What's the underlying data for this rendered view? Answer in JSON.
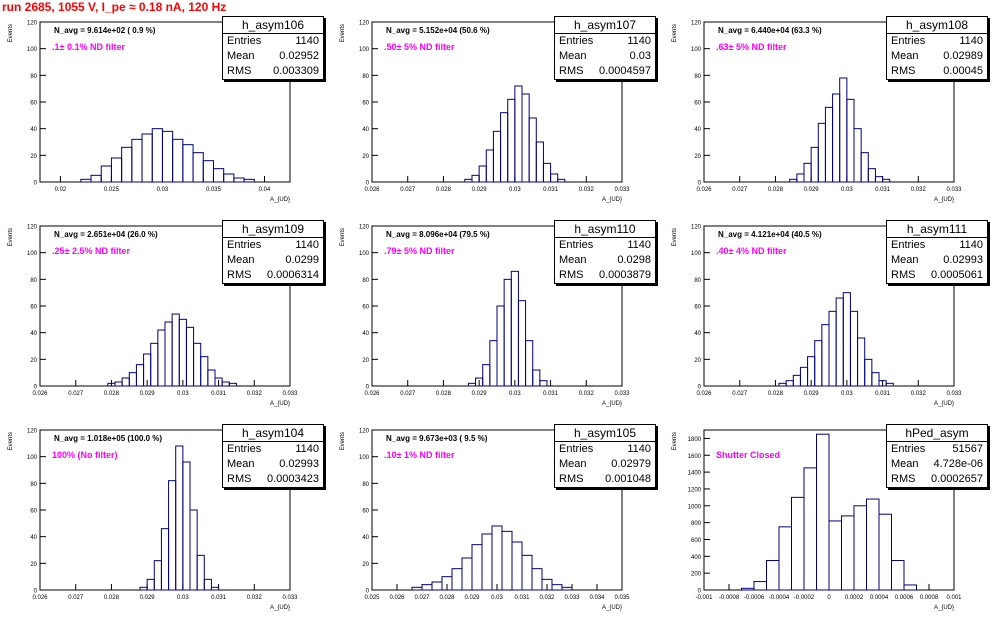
{
  "page_title": "run 2685,  1055 V, I_pe ≈ 0.18 nA, 120 Hz",
  "labels": {
    "entries": "Entries",
    "mean": "Mean",
    "rms": "RMS"
  },
  "colors": {
    "title": "#ff0000",
    "filter_text": "#ff00ff",
    "histogram": "#000080"
  },
  "chart_data": [
    {
      "type": "bar",
      "name": "h_asym106",
      "entries": "1140",
      "mean": "0.02952",
      "rms": "0.003309",
      "navg": "N_avg = 9.614e+02 ( 0.9 %)",
      "filter": ".1± 0.1% ND filter",
      "ylabel": "Events",
      "xlabel": "A_{UD}",
      "xlim": [
        0.018,
        0.0425
      ],
      "ylim": [
        0,
        120
      ],
      "yticks": [
        0,
        20,
        40,
        60,
        80,
        100,
        120
      ],
      "xticks": [
        0.02,
        0.025,
        0.03,
        0.035,
        0.04
      ],
      "xticklabels": [
        "0.02",
        "0.025",
        "0.03",
        "0.035",
        "0.04"
      ],
      "x": [
        0.0225,
        0.0235,
        0.0245,
        0.0255,
        0.0265,
        0.0275,
        0.0285,
        0.0295,
        0.0305,
        0.0315,
        0.0325,
        0.0335,
        0.0345,
        0.0355,
        0.0365,
        0.0375,
        0.0385
      ],
      "values": [
        2,
        5,
        12,
        18,
        26,
        32,
        36,
        40,
        38,
        32,
        28,
        22,
        16,
        10,
        6,
        3,
        2
      ]
    },
    {
      "type": "bar",
      "name": "h_asym107",
      "entries": "1140",
      "mean": "0.03",
      "rms": "0.0004597",
      "navg": "N_avg = 5.152e+04 (50.6 %)",
      "filter": ".50± 5% ND filter",
      "ylabel": "Events",
      "xlabel": "A_{UD}",
      "xlim": [
        0.026,
        0.033
      ],
      "ylim": [
        0,
        120
      ],
      "yticks": [
        0,
        20,
        40,
        60,
        80,
        100,
        120
      ],
      "xticks": [
        0.026,
        0.027,
        0.028,
        0.029,
        0.03,
        0.031,
        0.032,
        0.033
      ],
      "xticklabels": [
        "0.026",
        "0.027",
        "0.028",
        "0.029",
        "0.03",
        "0.031",
        "0.032",
        "0.033"
      ],
      "x": [
        0.0287,
        0.0289,
        0.0291,
        0.0293,
        0.0295,
        0.0297,
        0.0299,
        0.0301,
        0.0303,
        0.0305,
        0.0307,
        0.0309,
        0.0311,
        0.0313
      ],
      "values": [
        2,
        5,
        12,
        24,
        38,
        52,
        62,
        72,
        66,
        48,
        30,
        14,
        6,
        2
      ]
    },
    {
      "type": "bar",
      "name": "h_asym108",
      "entries": "1140",
      "mean": "0.02989",
      "rms": "0.00045",
      "navg": "N_avg = 6.440e+04 (63.3 %)",
      "filter": ".63± 5% ND filter",
      "ylabel": "Events",
      "xlabel": "A_{UD}",
      "xlim": [
        0.026,
        0.033
      ],
      "ylim": [
        0,
        120
      ],
      "yticks": [
        0,
        20,
        40,
        60,
        80,
        100,
        120
      ],
      "xticks": [
        0.026,
        0.027,
        0.028,
        0.029,
        0.03,
        0.031,
        0.032,
        0.033
      ],
      "xticklabels": [
        "0.026",
        "0.027",
        "0.028",
        "0.029",
        "0.03",
        "0.031",
        "0.032",
        "0.033"
      ],
      "x": [
        0.0285,
        0.0287,
        0.0289,
        0.0291,
        0.0293,
        0.0295,
        0.0297,
        0.0299,
        0.0301,
        0.0303,
        0.0305,
        0.0307,
        0.0309,
        0.0311
      ],
      "values": [
        2,
        6,
        14,
        26,
        44,
        56,
        66,
        78,
        62,
        40,
        22,
        10,
        4,
        2
      ]
    },
    {
      "type": "bar",
      "name": "h_asym109",
      "entries": "1140",
      "mean": "0.0299",
      "rms": "0.0006314",
      "navg": "N_avg = 2.651e+04 (26.0 %)",
      "filter": ".25± 2.5% ND filter",
      "ylabel": "Events",
      "xlabel": "A_{UD}",
      "xlim": [
        0.026,
        0.033
      ],
      "ylim": [
        0,
        120
      ],
      "yticks": [
        0,
        20,
        40,
        60,
        80,
        100,
        120
      ],
      "xticks": [
        0.026,
        0.027,
        0.028,
        0.029,
        0.03,
        0.031,
        0.032,
        0.033
      ],
      "xticklabels": [
        "0.026",
        "0.027",
        "0.028",
        "0.029",
        "0.03",
        "0.031",
        "0.032",
        "0.033"
      ],
      "x": [
        0.028,
        0.0282,
        0.0284,
        0.0286,
        0.0288,
        0.029,
        0.0292,
        0.0294,
        0.0296,
        0.0298,
        0.03,
        0.0302,
        0.0304,
        0.0306,
        0.0308,
        0.031,
        0.0312,
        0.0314
      ],
      "values": [
        2,
        3,
        6,
        10,
        16,
        24,
        32,
        42,
        48,
        54,
        50,
        44,
        32,
        22,
        12,
        6,
        3,
        2
      ]
    },
    {
      "type": "bar",
      "name": "h_asym110",
      "entries": "1140",
      "mean": "0.0298",
      "rms": "0.0003879",
      "navg": "N_avg = 8.096e+04 (79.5 %)",
      "filter": ".79± 5% ND filter",
      "ylabel": "Events",
      "xlabel": "A_{UD}",
      "xlim": [
        0.026,
        0.033
      ],
      "ylim": [
        0,
        120
      ],
      "yticks": [
        0,
        20,
        40,
        60,
        80,
        100,
        120
      ],
      "xticks": [
        0.026,
        0.027,
        0.028,
        0.029,
        0.03,
        0.031,
        0.032,
        0.033
      ],
      "xticklabels": [
        "0.026",
        "0.027",
        "0.028",
        "0.029",
        "0.03",
        "0.031",
        "0.032",
        "0.033"
      ],
      "x": [
        0.0288,
        0.029,
        0.0292,
        0.0294,
        0.0296,
        0.0298,
        0.03,
        0.0302,
        0.0304,
        0.0306,
        0.0308
      ],
      "values": [
        2,
        6,
        16,
        34,
        60,
        80,
        86,
        64,
        34,
        12,
        4
      ]
    },
    {
      "type": "bar",
      "name": "h_asym111",
      "entries": "1140",
      "mean": "0.02993",
      "rms": "0.0005061",
      "navg": "N_avg = 4.121e+04 (40.5 %)",
      "filter": ".40± 4% ND filter",
      "ylabel": "Events",
      "xlabel": "A_{UD}",
      "xlim": [
        0.026,
        0.033
      ],
      "ylim": [
        0,
        120
      ],
      "yticks": [
        0,
        20,
        40,
        60,
        80,
        100,
        120
      ],
      "xticks": [
        0.026,
        0.027,
        0.028,
        0.029,
        0.03,
        0.031,
        0.032,
        0.033
      ],
      "xticklabels": [
        "0.026",
        "0.027",
        "0.028",
        "0.029",
        "0.03",
        "0.031",
        "0.032",
        "0.033"
      ],
      "x": [
        0.0282,
        0.0284,
        0.0286,
        0.0288,
        0.029,
        0.0292,
        0.0294,
        0.0296,
        0.0298,
        0.03,
        0.0302,
        0.0304,
        0.0306,
        0.0308,
        0.031,
        0.0312
      ],
      "values": [
        2,
        4,
        8,
        14,
        22,
        34,
        46,
        56,
        66,
        70,
        56,
        36,
        20,
        10,
        4,
        2
      ]
    },
    {
      "type": "bar",
      "name": "h_asym104",
      "entries": "1140",
      "mean": "0.02993",
      "rms": "0.0003423",
      "navg": "N_avg = 1.018e+05 (100.0 %)",
      "filter": "100% (No filter)",
      "ylabel": "Events",
      "xlabel": "A_{UD}",
      "xlim": [
        0.026,
        0.033
      ],
      "ylim": [
        0,
        120
      ],
      "yticks": [
        0,
        20,
        40,
        60,
        80,
        100,
        120
      ],
      "xticks": [
        0.026,
        0.027,
        0.028,
        0.029,
        0.03,
        0.031,
        0.032,
        0.033
      ],
      "xticklabels": [
        "0.026",
        "0.027",
        "0.028",
        "0.029",
        "0.03",
        "0.031",
        "0.032",
        "0.033"
      ],
      "x": [
        0.0289,
        0.0291,
        0.0293,
        0.0295,
        0.0297,
        0.0299,
        0.0301,
        0.0303,
        0.0305,
        0.0307,
        0.0309
      ],
      "values": [
        2,
        8,
        22,
        46,
        82,
        108,
        96,
        60,
        26,
        8,
        2
      ]
    },
    {
      "type": "bar",
      "name": "h_asym105",
      "entries": "1140",
      "mean": "0.02979",
      "rms": "0.001048",
      "navg": "N_avg = 9.673e+03 ( 9.5 %)",
      "filter": ".10± 1% ND filter",
      "ylabel": "Events",
      "xlabel": "A_{UD}",
      "xlim": [
        0.025,
        0.035
      ],
      "ylim": [
        0,
        120
      ],
      "yticks": [
        0,
        20,
        40,
        60,
        80,
        100,
        120
      ],
      "xticks": [
        0.025,
        0.026,
        0.027,
        0.028,
        0.029,
        0.03,
        0.031,
        0.032,
        0.033,
        0.034,
        0.035
      ],
      "xticklabels": [
        "0.025",
        "0.026",
        "0.027",
        "0.028",
        "0.029",
        "0.03",
        "0.031",
        "0.032",
        "0.033",
        "0.034",
        "0.035"
      ],
      "x": [
        0.0268,
        0.0272,
        0.0276,
        0.028,
        0.0284,
        0.0288,
        0.0292,
        0.0296,
        0.03,
        0.0304,
        0.0308,
        0.0312,
        0.0316,
        0.032,
        0.0324,
        0.0328
      ],
      "values": [
        2,
        4,
        6,
        10,
        16,
        24,
        34,
        42,
        48,
        44,
        36,
        26,
        16,
        8,
        4,
        2
      ]
    },
    {
      "type": "bar",
      "name": "hPed_asym",
      "entries": "51567",
      "mean": "4.728e-06",
      "rms": "0.0002657",
      "navg": "",
      "filter": "Shutter Closed",
      "ylabel": "Events",
      "xlabel": "A_{UD}",
      "xlim": [
        -0.001,
        0.001
      ],
      "ylim": [
        0,
        1900
      ],
      "yticks": [
        0,
        200,
        400,
        600,
        800,
        1000,
        1200,
        1400,
        1600,
        1800
      ],
      "xticks": [
        -0.001,
        -0.0008,
        -0.0006,
        -0.0004,
        -0.0002,
        0,
        0.0002,
        0.0004,
        0.0006,
        0.0008,
        0.001
      ],
      "xticklabels": [
        "-0.001",
        "-0.0008",
        "-0.0006",
        "-0.0004",
        "-0.0002",
        "0",
        "0.0002",
        "0.0004",
        "0.0006",
        "0.0008",
        "0.001"
      ],
      "x": [
        -0.00065,
        -0.00055,
        -0.00045,
        -0.00035,
        -0.00025,
        -0.00015,
        -5e-05,
        5e-05,
        0.00015,
        0.00025,
        0.00035,
        0.00045,
        0.00055,
        0.00065
      ],
      "values": [
        20,
        100,
        350,
        750,
        1100,
        1450,
        1850,
        820,
        880,
        1000,
        1080,
        900,
        350,
        60
      ]
    }
  ]
}
